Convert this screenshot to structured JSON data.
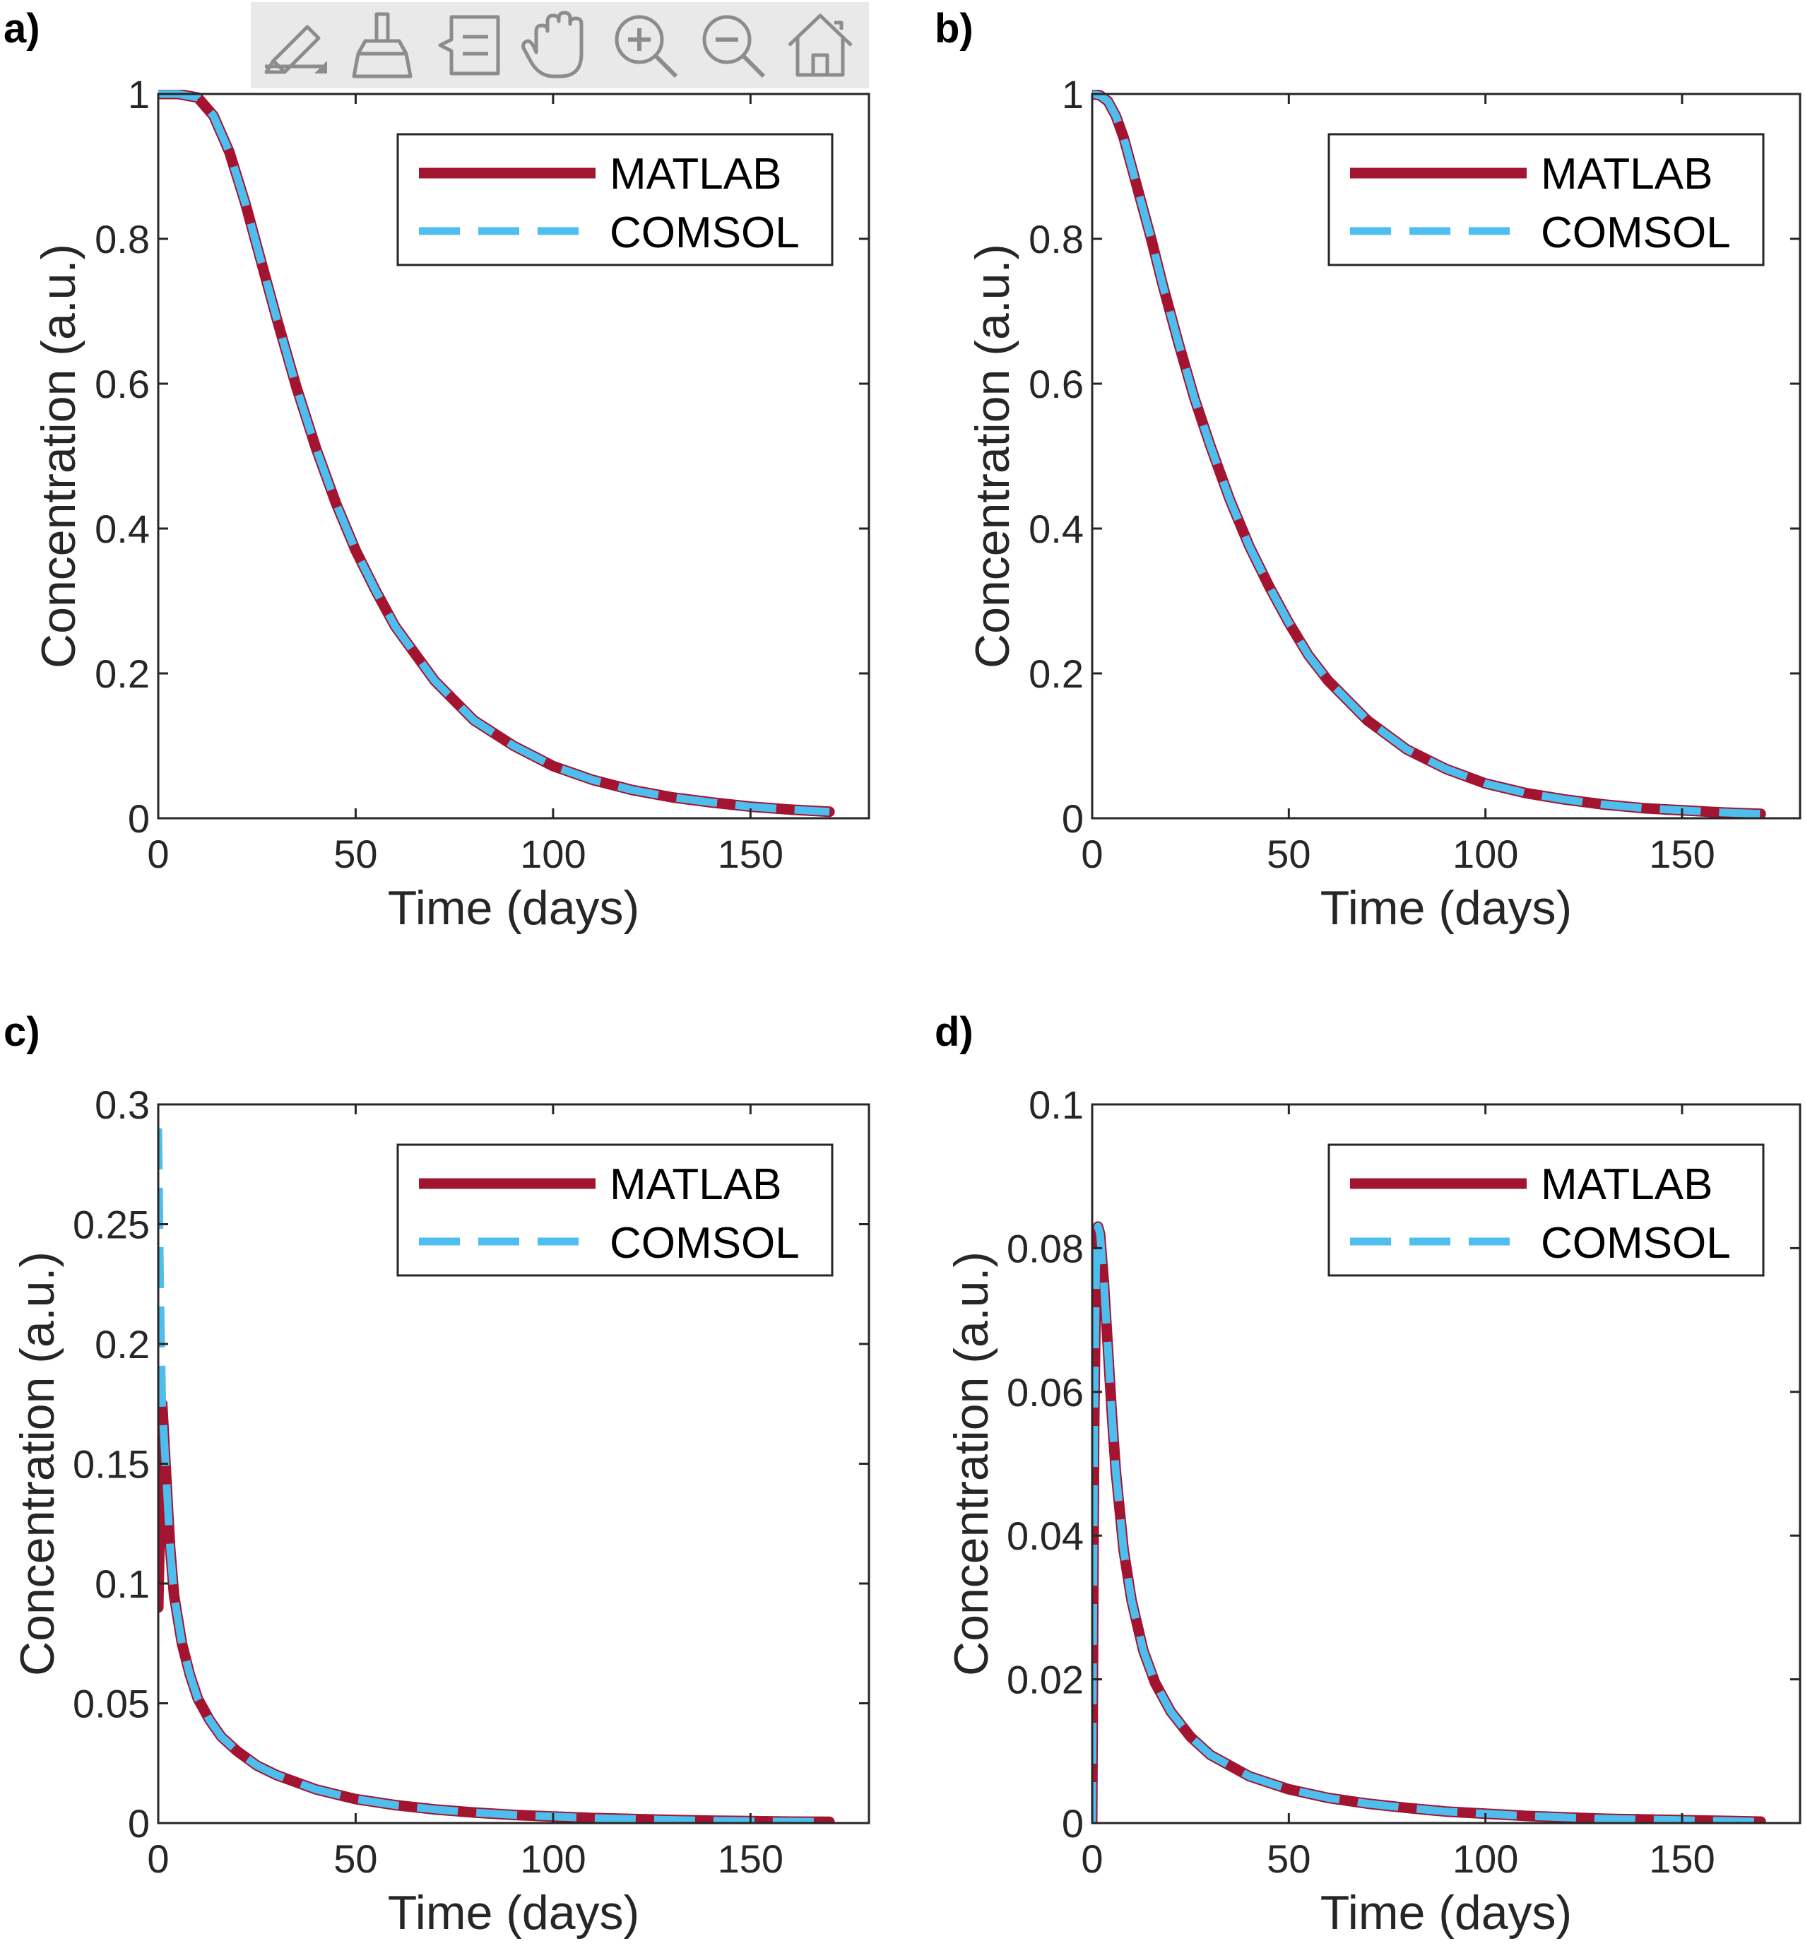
{
  "toolbar": {
    "background": "#e9e9e9",
    "icon_color": "#8c8c8c",
    "buttons": [
      {
        "name": "brush-export-icon"
      },
      {
        "name": "data-brush-icon"
      },
      {
        "name": "data-tips-icon"
      },
      {
        "name": "pan-hand-icon"
      },
      {
        "name": "zoom-in-icon"
      },
      {
        "name": "zoom-out-icon"
      },
      {
        "name": "home-icon"
      }
    ]
  },
  "colors": {
    "matlab": "#a2142f",
    "comsol": "#4dbeee",
    "axis": "#262626"
  },
  "chart_data": [
    {
      "type": "line",
      "panel_label": "a)",
      "xlabel": "Time (days)",
      "ylabel": "Concentration (a.u.)",
      "xlim": [
        0,
        180
      ],
      "ylim": [
        0,
        1
      ],
      "xticks": [
        0,
        50,
        100,
        150
      ],
      "yticks": [
        0,
        0.2,
        0.4,
        0.6,
        0.8,
        1
      ],
      "ytick_labels": [
        "0",
        "0.2",
        "0.4",
        "0.6",
        "0.8",
        "1"
      ],
      "legend": {
        "position": "top-right",
        "entries": [
          "MATLAB",
          "COMSOL"
        ]
      },
      "series": [
        {
          "name": "MATLAB",
          "style": "solid",
          "x": [
            0,
            5,
            10,
            14,
            18,
            22,
            26,
            30,
            35,
            40,
            45,
            50,
            55,
            60,
            70,
            80,
            90,
            100,
            110,
            120,
            130,
            140,
            150,
            160,
            170
          ],
          "y": [
            1.0,
            1.0,
            0.995,
            0.97,
            0.92,
            0.85,
            0.77,
            0.69,
            0.595,
            0.51,
            0.435,
            0.37,
            0.315,
            0.265,
            0.19,
            0.135,
            0.1,
            0.072,
            0.053,
            0.039,
            0.029,
            0.022,
            0.016,
            0.012,
            0.009
          ]
        },
        {
          "name": "COMSOL",
          "style": "dashed",
          "x": [
            0,
            5,
            10,
            14,
            18,
            22,
            26,
            30,
            35,
            40,
            45,
            50,
            55,
            60,
            70,
            80,
            90,
            100,
            110,
            120,
            130,
            140,
            150,
            160,
            170
          ],
          "y": [
            1.0,
            1.0,
            0.995,
            0.97,
            0.92,
            0.85,
            0.77,
            0.69,
            0.595,
            0.51,
            0.435,
            0.37,
            0.315,
            0.265,
            0.19,
            0.135,
            0.1,
            0.072,
            0.053,
            0.039,
            0.029,
            0.022,
            0.016,
            0.012,
            0.009
          ]
        }
      ]
    },
    {
      "type": "line",
      "panel_label": "b)",
      "xlabel": "Time (days)",
      "ylabel": "Concentration (a.u.)",
      "xlim": [
        0,
        180
      ],
      "ylim": [
        0,
        1
      ],
      "xticks": [
        0,
        50,
        100,
        150
      ],
      "yticks": [
        0,
        0.2,
        0.4,
        0.6,
        0.8,
        1
      ],
      "ytick_labels": [
        "0",
        "0.2",
        "0.4",
        "0.6",
        "0.8",
        "1"
      ],
      "legend": {
        "position": "top-right",
        "entries": [
          "MATLAB",
          "COMSOL"
        ]
      },
      "series": [
        {
          "name": "MATLAB",
          "style": "solid",
          "x": [
            0,
            2,
            4,
            6,
            8,
            10,
            12,
            15,
            18,
            22,
            26,
            30,
            35,
            40,
            45,
            50,
            55,
            60,
            70,
            80,
            90,
            100,
            110,
            120,
            130,
            140,
            150,
            160,
            170
          ],
          "y": [
            1.0,
            0.998,
            0.99,
            0.97,
            0.94,
            0.9,
            0.86,
            0.8,
            0.735,
            0.655,
            0.58,
            0.515,
            0.44,
            0.375,
            0.32,
            0.27,
            0.225,
            0.19,
            0.135,
            0.095,
            0.068,
            0.048,
            0.035,
            0.026,
            0.019,
            0.014,
            0.011,
            0.008,
            0.006
          ]
        },
        {
          "name": "COMSOL",
          "style": "dashed",
          "x": [
            0,
            2,
            4,
            6,
            8,
            10,
            12,
            15,
            18,
            22,
            26,
            30,
            35,
            40,
            45,
            50,
            55,
            60,
            70,
            80,
            90,
            100,
            110,
            120,
            130,
            140,
            150,
            160,
            170
          ],
          "y": [
            1.0,
            0.998,
            0.99,
            0.97,
            0.94,
            0.9,
            0.86,
            0.8,
            0.735,
            0.655,
            0.58,
            0.515,
            0.44,
            0.375,
            0.32,
            0.27,
            0.225,
            0.19,
            0.135,
            0.095,
            0.068,
            0.048,
            0.035,
            0.026,
            0.019,
            0.014,
            0.011,
            0.008,
            0.006
          ]
        }
      ]
    },
    {
      "type": "line",
      "panel_label": "c)",
      "xlabel": "Time (days)",
      "ylabel": "Concentration (a.u.)",
      "xlim": [
        0,
        180
      ],
      "ylim": [
        0,
        0.3
      ],
      "xticks": [
        0,
        50,
        100,
        150
      ],
      "yticks": [
        0,
        0.05,
        0.1,
        0.15,
        0.2,
        0.25,
        0.3
      ],
      "ytick_labels": [
        "0",
        "0.05",
        "0.1",
        "0.15",
        "0.2",
        "0.25",
        "0.3"
      ],
      "legend": {
        "position": "top-right",
        "entries": [
          "MATLAB",
          "COMSOL"
        ]
      },
      "series": [
        {
          "name": "MATLAB",
          "style": "solid",
          "x": [
            0,
            1,
            2,
            3,
            4,
            6,
            8,
            10,
            13,
            16,
            20,
            25,
            30,
            40,
            50,
            60,
            70,
            80,
            90,
            100,
            110,
            120,
            130,
            140,
            150,
            160,
            170
          ],
          "y": [
            0.09,
            0.175,
            0.145,
            0.115,
            0.095,
            0.075,
            0.062,
            0.052,
            0.043,
            0.036,
            0.03,
            0.024,
            0.02,
            0.014,
            0.01,
            0.0075,
            0.0057,
            0.0044,
            0.0034,
            0.0027,
            0.0021,
            0.0017,
            0.0013,
            0.001,
            0.0008,
            0.0006,
            0.0005
          ]
        },
        {
          "name": "COMSOL",
          "style": "dashed",
          "x": [
            0,
            0.5,
            1,
            2,
            3,
            4,
            6,
            8,
            10,
            13,
            16,
            20,
            25,
            30,
            40,
            50,
            60,
            70,
            80,
            90,
            100,
            110,
            120,
            130,
            140,
            150,
            160,
            170
          ],
          "y": [
            0.29,
            0.22,
            0.175,
            0.145,
            0.115,
            0.095,
            0.075,
            0.062,
            0.052,
            0.043,
            0.036,
            0.03,
            0.024,
            0.02,
            0.014,
            0.01,
            0.0075,
            0.0057,
            0.0044,
            0.0034,
            0.0027,
            0.0021,
            0.0017,
            0.0013,
            0.001,
            0.0008,
            0.0006,
            0.0005
          ]
        }
      ]
    },
    {
      "type": "line",
      "panel_label": "d)",
      "xlabel": "Time (days)",
      "ylabel": "Concentration (a.u.)",
      "xlim": [
        0,
        180
      ],
      "ylim": [
        0,
        0.1
      ],
      "xticks": [
        0,
        50,
        100,
        150
      ],
      "yticks": [
        0,
        0.02,
        0.04,
        0.06,
        0.08,
        0.1
      ],
      "ytick_labels": [
        "0",
        "0.02",
        "0.04",
        "0.06",
        "0.08",
        "0.1"
      ],
      "legend": {
        "position": "top-right",
        "entries": [
          "MATLAB",
          "COMSOL"
        ]
      },
      "series": [
        {
          "name": "MATLAB",
          "style": "solid",
          "x": [
            0,
            0.5,
            1,
            1.5,
            2,
            3,
            4,
            5,
            6,
            8,
            10,
            13,
            16,
            20,
            25,
            30,
            40,
            50,
            60,
            70,
            80,
            90,
            100,
            110,
            120,
            130,
            140,
            150,
            160,
            170
          ],
          "y": [
            0,
            0.055,
            0.078,
            0.083,
            0.082,
            0.075,
            0.066,
            0.057,
            0.049,
            0.038,
            0.031,
            0.024,
            0.0195,
            0.0155,
            0.012,
            0.0095,
            0.0065,
            0.0047,
            0.0035,
            0.0027,
            0.0021,
            0.0016,
            0.0013,
            0.001,
            0.0008,
            0.0006,
            0.0005,
            0.0004,
            0.0003,
            0.0002
          ]
        },
        {
          "name": "COMSOL",
          "style": "dashed",
          "x": [
            0,
            0.5,
            1,
            1.5,
            2,
            3,
            4,
            5,
            6,
            8,
            10,
            13,
            16,
            20,
            25,
            30,
            40,
            50,
            60,
            70,
            80,
            90,
            100,
            110,
            120,
            130,
            140,
            150,
            160,
            170
          ],
          "y": [
            0,
            0.055,
            0.078,
            0.083,
            0.082,
            0.075,
            0.066,
            0.057,
            0.049,
            0.038,
            0.031,
            0.024,
            0.0195,
            0.0155,
            0.012,
            0.0095,
            0.0065,
            0.0047,
            0.0035,
            0.0027,
            0.0021,
            0.0016,
            0.0013,
            0.001,
            0.0008,
            0.0006,
            0.0005,
            0.0004,
            0.0003,
            0.0002
          ]
        }
      ]
    }
  ]
}
